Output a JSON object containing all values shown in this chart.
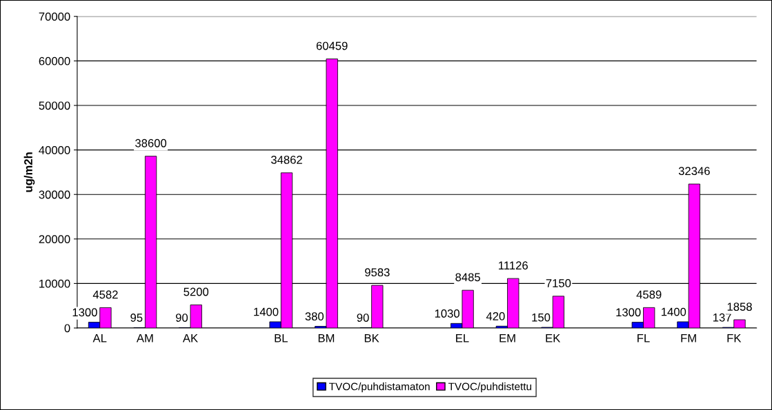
{
  "chart_data": {
    "type": "bar",
    "ylabel": "ug/m2h",
    "categories": [
      "AL",
      "AM",
      "AK",
      null,
      "BL",
      "BM",
      "BK",
      null,
      "EL",
      "EM",
      "EK",
      null,
      "FL",
      "FM",
      "FK"
    ],
    "series": [
      {
        "name": "TVOC/puhdistamaton",
        "color": "#0000ff",
        "values": [
          1300,
          95,
          90,
          null,
          1400,
          380,
          90,
          null,
          1030,
          420,
          150,
          null,
          1300,
          1400,
          137
        ]
      },
      {
        "name": "TVOC/puhdistettu",
        "color": "#ff00ff",
        "values": [
          4582,
          38600,
          5200,
          null,
          34862,
          60459,
          9583,
          null,
          8485,
          11126,
          7150,
          null,
          4589,
          32346,
          1858
        ]
      }
    ],
    "ylim": [
      0,
      70000
    ],
    "yticks": [
      0,
      10000,
      20000,
      30000,
      40000,
      50000,
      60000,
      70000
    ],
    "grid": "y",
    "legend": "bottom",
    "data_labels": true
  }
}
